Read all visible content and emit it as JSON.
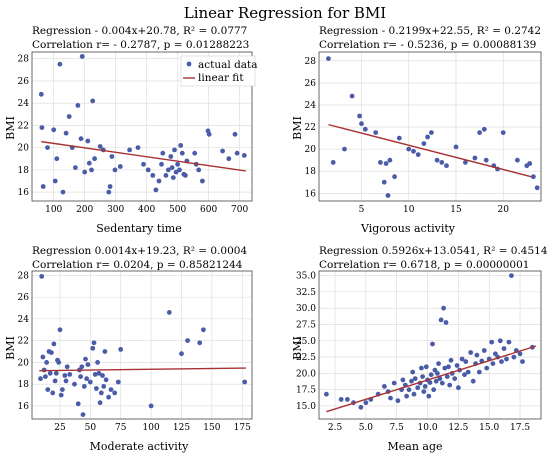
{
  "page_title": "Linear Regression for BMI",
  "colors": {
    "points": "#4a5ca8",
    "fit": "#a83232"
  },
  "legend": {
    "points": "actual data",
    "fit": "linear fit",
    "placement": "top-right"
  },
  "chart_data": [
    {
      "type": "scatter",
      "stat_line1": "Regression   - 0.004x+20.78,  R² = 0.0777",
      "stat_line2": "Correlation   r= - 0.2787, p = 0.01288223",
      "xlabel": "Sedentary time",
      "ylabel": "BMI",
      "xlim": [
        30,
        740
      ],
      "ylim": [
        15.2,
        28.6
      ],
      "xticks": [
        100,
        200,
        300,
        400,
        500,
        600,
        700
      ],
      "yticks": [
        16,
        18,
        20,
        22,
        24,
        26,
        28
      ],
      "fit": {
        "slope": -0.004,
        "intercept": 20.78,
        "x0": 60,
        "x1": 720
      },
      "grid": true,
      "points": [
        [
          60,
          24.8
        ],
        [
          62,
          21.8
        ],
        [
          66,
          16.5
        ],
        [
          80,
          20
        ],
        [
          100,
          21.6
        ],
        [
          105,
          17
        ],
        [
          110,
          19
        ],
        [
          120,
          27.5
        ],
        [
          130,
          16
        ],
        [
          140,
          21.3
        ],
        [
          150,
          22.8
        ],
        [
          160,
          20
        ],
        [
          170,
          18.2
        ],
        [
          178,
          23.8
        ],
        [
          188,
          20.8
        ],
        [
          192,
          28.2
        ],
        [
          200,
          17.8
        ],
        [
          210,
          20.6
        ],
        [
          215,
          18.6
        ],
        [
          222,
          18
        ],
        [
          226,
          24.2
        ],
        [
          232,
          19
        ],
        [
          250,
          20.1
        ],
        [
          260,
          19.8
        ],
        [
          278,
          16
        ],
        [
          282,
          16.5
        ],
        [
          288,
          19.2
        ],
        [
          298,
          18
        ],
        [
          315,
          18.3
        ],
        [
          345,
          19.8
        ],
        [
          372,
          20
        ],
        [
          390,
          18.5
        ],
        [
          405,
          18
        ],
        [
          420,
          17.5
        ],
        [
          430,
          16.2
        ],
        [
          440,
          17
        ],
        [
          448,
          18.5
        ],
        [
          452,
          19.5
        ],
        [
          462,
          17.5
        ],
        [
          470,
          18
        ],
        [
          478,
          19.2
        ],
        [
          482,
          18.2
        ],
        [
          486,
          17.3
        ],
        [
          490,
          19.8
        ],
        [
          495,
          17.8
        ],
        [
          500,
          18.5
        ],
        [
          506,
          18
        ],
        [
          510,
          20.2
        ],
        [
          515,
          19.5
        ],
        [
          520,
          17.6
        ],
        [
          525,
          17.5
        ],
        [
          530,
          18.8
        ],
        [
          555,
          19.5
        ],
        [
          560,
          18.5
        ],
        [
          568,
          18
        ],
        [
          580,
          17
        ],
        [
          598,
          21.5
        ],
        [
          602,
          21.2
        ],
        [
          645,
          19.7
        ],
        [
          665,
          19
        ],
        [
          685,
          21.2
        ],
        [
          692,
          19.5
        ],
        [
          715,
          19.3
        ]
      ]
    },
    {
      "type": "scatter",
      "stat_line1": "Regression   - 0.2199x+22.55,  R² = 0.2742",
      "stat_line2": "Correlation   r= - 0.5236, p = 0.00088139",
      "xlabel": "Vigorous activity",
      "ylabel": "BMI",
      "xlim": [
        0.5,
        24
      ],
      "ylim": [
        15.3,
        28.8
      ],
      "xticks": [
        5,
        10,
        15,
        20
      ],
      "yticks": [
        16,
        18,
        20,
        22,
        24,
        26,
        28
      ],
      "fit": {
        "slope": -0.2199,
        "intercept": 22.55,
        "x0": 1.5,
        "x1": 23
      },
      "grid": true,
      "points": [
        [
          1.5,
          28.2
        ],
        [
          2,
          18.8
        ],
        [
          3.2,
          20
        ],
        [
          4,
          24.8
        ],
        [
          4.8,
          23
        ],
        [
          5,
          22.3
        ],
        [
          5.4,
          21.8
        ],
        [
          6.5,
          21.5
        ],
        [
          7,
          18.8
        ],
        [
          7.4,
          17
        ],
        [
          7.6,
          18.7
        ],
        [
          7.8,
          15.8
        ],
        [
          8,
          19
        ],
        [
          8.5,
          17.5
        ],
        [
          9,
          21
        ],
        [
          10,
          20
        ],
        [
          10.5,
          19.8
        ],
        [
          11,
          19.5
        ],
        [
          11.6,
          20.5
        ],
        [
          12,
          21.1
        ],
        [
          12.4,
          21.5
        ],
        [
          13,
          19
        ],
        [
          13.5,
          18.8
        ],
        [
          14,
          18.5
        ],
        [
          15,
          20.2
        ],
        [
          16,
          18.8
        ],
        [
          17,
          19.2
        ],
        [
          17.5,
          21.5
        ],
        [
          18,
          21.8
        ],
        [
          18.2,
          19
        ],
        [
          19,
          18.5
        ],
        [
          19.4,
          18.2
        ],
        [
          20,
          21.5
        ],
        [
          21.5,
          19
        ],
        [
          22.5,
          18.5
        ],
        [
          22.8,
          18.7
        ],
        [
          23.2,
          17.5
        ],
        [
          23.6,
          16.5
        ]
      ]
    },
    {
      "type": "scatter",
      "stat_line1": "Regression   0.0014x+19.23,  R² = 0.0004",
      "stat_line2": "Correlation   r= 0.0204, p = 0.85821244",
      "xlabel": "Moderate activity",
      "ylabel": "BMI",
      "xlim": [
        2,
        183
      ],
      "ylim": [
        14.8,
        28.4
      ],
      "xticks": [
        25,
        50,
        75,
        100,
        125,
        150,
        175
      ],
      "yticks": [
        16,
        18,
        20,
        22,
        24,
        26,
        28
      ],
      "fit": {
        "slope": 0.0014,
        "intercept": 19.23,
        "x0": 8,
        "x1": 178
      },
      "grid": true,
      "points": [
        [
          9,
          18.5
        ],
        [
          10,
          27.9
        ],
        [
          11,
          20.5
        ],
        [
          12,
          19.3
        ],
        [
          13,
          18.7
        ],
        [
          14,
          20
        ],
        [
          15,
          17.5
        ],
        [
          16,
          21
        ],
        [
          17,
          19
        ],
        [
          18,
          20.9
        ],
        [
          19,
          17.2
        ],
        [
          20,
          21.7
        ],
        [
          21,
          18.3
        ],
        [
          22,
          19
        ],
        [
          23,
          20.2
        ],
        [
          24,
          20
        ],
        [
          25,
          23
        ],
        [
          26,
          17
        ],
        [
          27,
          17.5
        ],
        [
          29,
          18.8
        ],
        [
          30,
          18.3
        ],
        [
          31,
          19.6
        ],
        [
          33,
          18.9
        ],
        [
          37,
          18
        ],
        [
          40,
          16.2
        ],
        [
          41,
          19.3
        ],
        [
          42,
          18.7
        ],
        [
          43,
          19.6
        ],
        [
          44,
          15.2
        ],
        [
          45,
          17.8
        ],
        [
          46,
          20.3
        ],
        [
          47,
          18.5
        ],
        [
          48,
          19.8
        ],
        [
          50,
          18.2
        ],
        [
          52,
          21.3
        ],
        [
          53,
          21.8
        ],
        [
          54,
          18.9
        ],
        [
          55,
          17.6
        ],
        [
          56,
          20
        ],
        [
          57,
          19
        ],
        [
          58,
          16.3
        ],
        [
          59,
          17.2
        ],
        [
          60,
          18.8
        ],
        [
          61,
          17.8
        ],
        [
          62,
          21
        ],
        [
          63,
          18.4
        ],
        [
          65,
          16.8
        ],
        [
          67,
          17.5
        ],
        [
          70,
          17.2
        ],
        [
          73,
          18.2
        ],
        [
          75,
          21.2
        ],
        [
          100,
          16
        ],
        [
          115,
          24.6
        ],
        [
          125,
          20.8
        ],
        [
          130,
          22
        ],
        [
          140,
          21.8
        ],
        [
          143,
          23
        ],
        [
          177,
          18.2
        ]
      ]
    },
    {
      "type": "scatter",
      "stat_line1": "Regression   0.5926x+13.0541,  R² = 0.4514",
      "stat_line2": "Correlation   r= 0.6718, p = 0.00000001",
      "xlabel": "Mean age",
      "ylabel": "BMI",
      "xlim": [
        1.2,
        19.2
      ],
      "ylim": [
        13.0,
        35.7
      ],
      "xticks": [
        2.5,
        5.0,
        7.5,
        10.0,
        12.5,
        15.0,
        17.5
      ],
      "yticks": [
        15.0,
        17.5,
        20.0,
        22.5,
        25.0,
        27.5,
        30.0,
        32.5,
        35.0
      ],
      "fit": {
        "slope": 0.5926,
        "intercept": 13.0541,
        "x0": 1.8,
        "x1": 18.8
      },
      "grid": true,
      "points": [
        [
          1.8,
          16.8
        ],
        [
          3,
          16
        ],
        [
          3.5,
          16
        ],
        [
          4,
          15.5
        ],
        [
          4.6,
          14.8
        ],
        [
          5,
          15.5
        ],
        [
          5.4,
          16
        ],
        [
          6,
          16.8
        ],
        [
          6.5,
          18
        ],
        [
          6.8,
          17.2
        ],
        [
          7,
          16.2
        ],
        [
          7.3,
          18.5
        ],
        [
          7.6,
          15.8
        ],
        [
          7.9,
          17.5
        ],
        [
          8,
          19
        ],
        [
          8.2,
          18.2
        ],
        [
          8.3,
          16.5
        ],
        [
          8.5,
          17.5
        ],
        [
          8.7,
          18.8
        ],
        [
          8.8,
          20.2
        ],
        [
          8.9,
          16.8
        ],
        [
          9,
          19.2
        ],
        [
          9.2,
          17.8
        ],
        [
          9.4,
          18.5
        ],
        [
          9.5,
          20.8
        ],
        [
          9.6,
          19.5
        ],
        [
          9.7,
          17.2
        ],
        [
          9.8,
          18
        ],
        [
          9.9,
          21
        ],
        [
          10,
          19
        ],
        [
          10.1,
          16.5
        ],
        [
          10.2,
          18.6
        ],
        [
          10.3,
          19.8
        ],
        [
          10.4,
          24.5
        ],
        [
          10.5,
          17.5
        ],
        [
          10.6,
          20.5
        ],
        [
          10.7,
          18.8
        ],
        [
          10.8,
          20
        ],
        [
          10.9,
          21.5
        ],
        [
          11,
          19.2
        ],
        [
          11.1,
          28.2
        ],
        [
          11.2,
          18.5
        ],
        [
          11.3,
          30
        ],
        [
          11.4,
          20.8
        ],
        [
          11.5,
          27.8
        ],
        [
          11.6,
          19.5
        ],
        [
          11.7,
          21
        ],
        [
          11.8,
          18.2
        ],
        [
          11.9,
          22
        ],
        [
          12,
          20
        ],
        [
          12.2,
          19.2
        ],
        [
          12.4,
          21.2
        ],
        [
          12.5,
          17.8
        ],
        [
          12.6,
          20.5
        ],
        [
          12.8,
          22.2
        ],
        [
          13,
          19.8
        ],
        [
          13.1,
          21.8
        ],
        [
          13.3,
          20.2
        ],
        [
          13.5,
          23.2
        ],
        [
          13.7,
          18.8
        ],
        [
          13.9,
          21.5
        ],
        [
          14,
          22.8
        ],
        [
          14.2,
          20.2
        ],
        [
          14.4,
          21.9
        ],
        [
          14.6,
          23.5
        ],
        [
          14.8,
          20.8
        ],
        [
          15,
          22.2
        ],
        [
          15.2,
          24.8
        ],
        [
          15.3,
          21.5
        ],
        [
          15.5,
          23
        ],
        [
          15.7,
          22.5
        ],
        [
          15.9,
          25
        ],
        [
          16,
          21.8
        ],
        [
          16.2,
          23.8
        ],
        [
          16.4,
          22.2
        ],
        [
          16.6,
          24.8
        ],
        [
          16.8,
          35
        ],
        [
          17,
          22.5
        ],
        [
          17.2,
          23.5
        ],
        [
          17.5,
          23
        ],
        [
          17.7,
          21.8
        ],
        [
          18.5,
          24
        ]
      ]
    }
  ]
}
